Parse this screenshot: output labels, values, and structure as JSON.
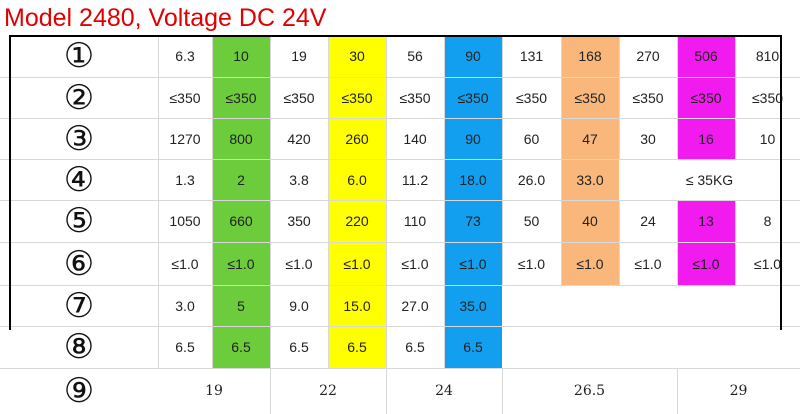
{
  "title": "Model 2480, Voltage DC 24V",
  "row_numbers": [
    "①",
    "②",
    "③",
    "④",
    "⑤",
    "⑥",
    "⑦",
    "⑧",
    "⑨"
  ],
  "rows": [
    [
      "6.3",
      "10",
      "19",
      "30",
      "56",
      "90",
      "131",
      "168",
      "270",
      "506",
      "810"
    ],
    [
      "≤350",
      "≤350",
      "≤350",
      "≤350",
      "≤350",
      "≤350",
      "≤350",
      "≤350",
      "≤350",
      "≤350",
      "≤350"
    ],
    [
      "1270",
      "800",
      "420",
      "260",
      "140",
      "90",
      "60",
      "47",
      "30",
      "16",
      "10"
    ],
    [
      "1.3",
      "2",
      "3.8",
      "6.0",
      "11.2",
      "18.0",
      "26.0",
      "33.0"
    ],
    [
      "1050",
      "660",
      "350",
      "220",
      "110",
      "73",
      "50",
      "40",
      "24",
      "13",
      "8"
    ],
    [
      "≤1.0",
      "≤1.0",
      "≤1.0",
      "≤1.0",
      "≤1.0",
      "≤1.0",
      "≤1.0",
      "≤1.0",
      "≤1.0",
      "≤1.0",
      "≤1.0"
    ],
    [
      "3.0",
      "5",
      "9.0",
      "15.0",
      "27.0",
      "35.0"
    ],
    [
      "6.5",
      "6.5",
      "6.5",
      "6.5",
      "6.5",
      "6.5"
    ]
  ],
  "row4_merged": "≤ 35KG",
  "row9": [
    "19",
    "22",
    "24",
    "26.5",
    "29"
  ],
  "colors": {
    "green": "#6dcc3c",
    "yellow": "#ffff00",
    "blue": "#139ff0",
    "orange": "#f9b77c",
    "magenta": "#f21bef"
  }
}
